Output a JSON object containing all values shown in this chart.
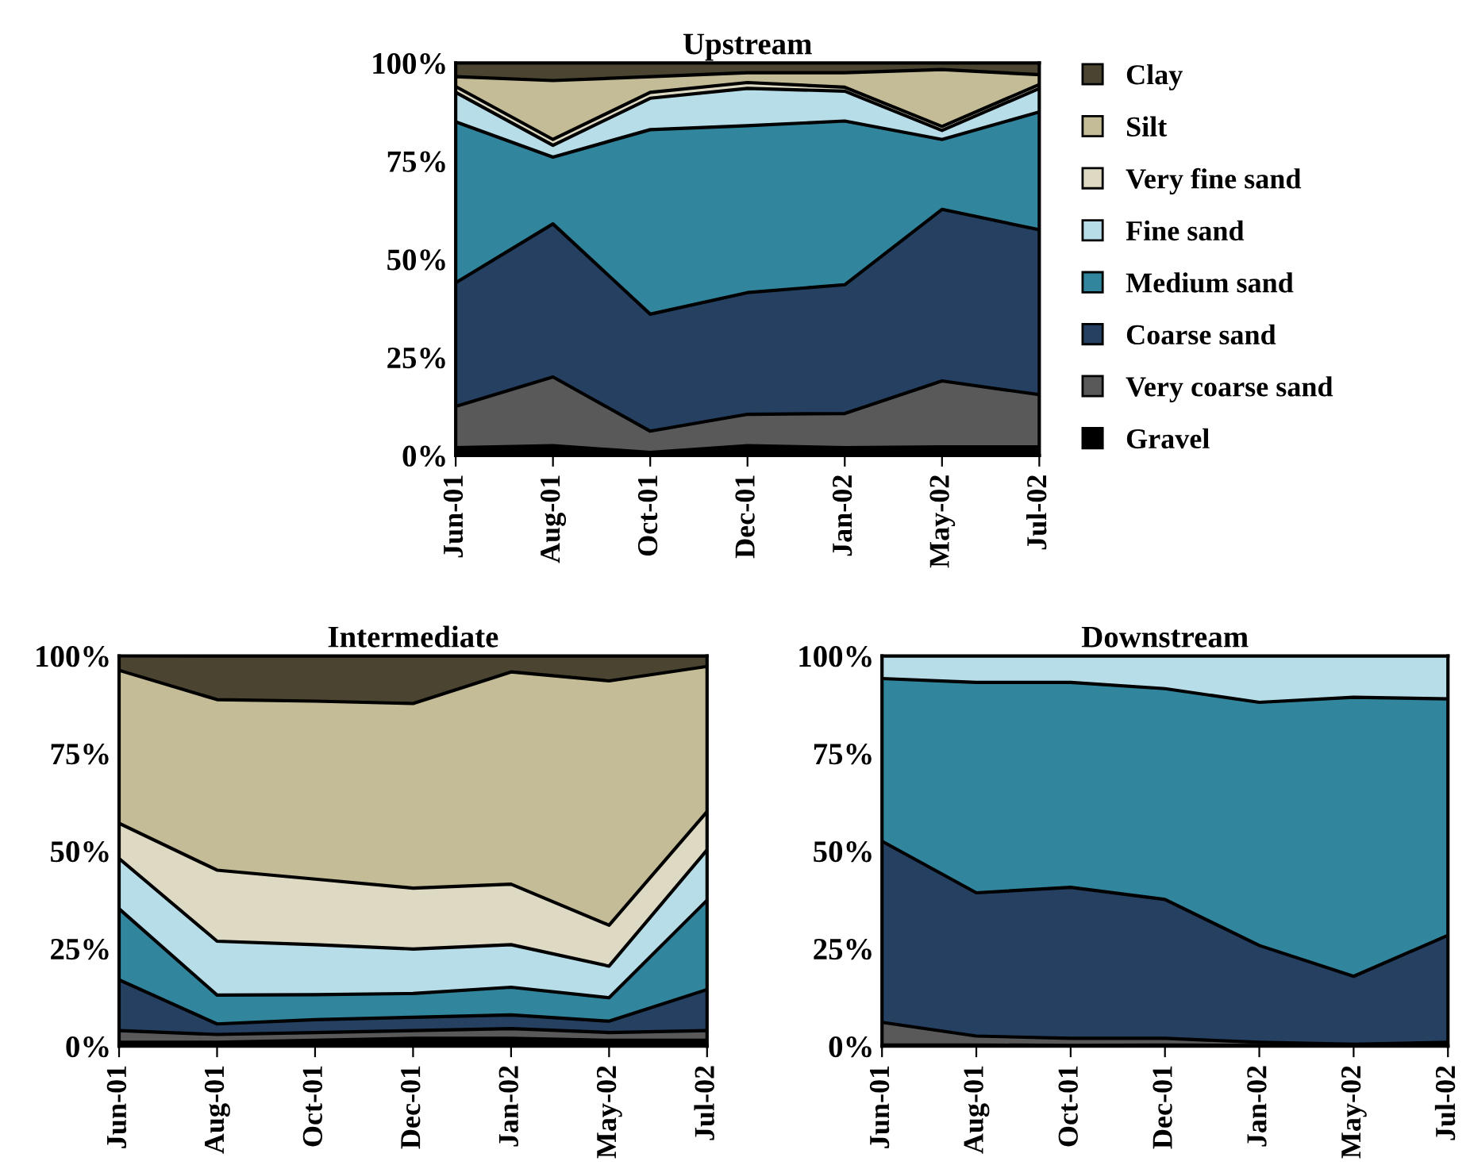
{
  "chart_data": [
    {
      "type": "area",
      "title": "Upstream",
      "stacked": true,
      "legend": "right",
      "grid": false,
      "categories": [
        "Jun-01",
        "Aug-01",
        "Oct-01",
        "Dec-01",
        "Jan-02",
        "May-02",
        "Jul-02"
      ],
      "ylim": [
        0,
        100
      ],
      "yticks": [
        {
          "value": 0,
          "label": "0%"
        },
        {
          "value": 25,
          "label": "25%"
        },
        {
          "value": 50,
          "label": "50%"
        },
        {
          "value": 75,
          "label": "75%"
        },
        {
          "value": 100,
          "label": "100%"
        }
      ],
      "series": [
        {
          "name": "Gravel",
          "color": "#000000",
          "values": [
            2,
            2.5,
            0.8,
            2.5,
            2,
            2.2,
            2.2
          ]
        },
        {
          "name": "Very coarse sand",
          "color": "#595959",
          "values": [
            10.5,
            17.5,
            5.4,
            8,
            8.7,
            16.8,
            13.3
          ]
        },
        {
          "name": "Coarse sand",
          "color": "#254061",
          "values": [
            31.5,
            39,
            29.8,
            31,
            32.8,
            43.7,
            42
          ]
        },
        {
          "name": "Medium sand",
          "color": "#31859c",
          "values": [
            41,
            17,
            47,
            42.5,
            41.7,
            17.8,
            30
          ]
        },
        {
          "name": "Fine sand",
          "color": "#b7dde8",
          "values": [
            7.5,
            3,
            8,
            9.5,
            7.6,
            2.3,
            6
          ]
        },
        {
          "name": "Very fine sand",
          "color": "#ddd9c3",
          "values": [
            1.5,
            1.5,
            1.5,
            1.5,
            1,
            1,
            1
          ]
        },
        {
          "name": "Silt",
          "color": "#c4bc96",
          "values": [
            2.5,
            15,
            4,
            2.5,
            3.7,
            14.5,
            2.5
          ]
        },
        {
          "name": "Clay",
          "color": "#4a4430",
          "values": [
            3.5,
            4.5,
            3.5,
            2.5,
            2.5,
            1.7,
            3
          ]
        }
      ]
    },
    {
      "type": "area",
      "title": "Intermediate",
      "stacked": true,
      "grid": false,
      "categories": [
        "Jun-01",
        "Aug-01",
        "Oct-01",
        "Dec-01",
        "Jan-02",
        "May-02",
        "Jul-02"
      ],
      "ylim": [
        0,
        100
      ],
      "yticks": [
        {
          "value": 0,
          "label": "0%"
        },
        {
          "value": 25,
          "label": "25%"
        },
        {
          "value": 50,
          "label": "50%"
        },
        {
          "value": 75,
          "label": "75%"
        },
        {
          "value": 100,
          "label": "100%"
        }
      ],
      "series": [
        {
          "color": "#000000",
          "values": [
            1,
            1,
            1.5,
            2,
            2,
            1.5,
            1.5
          ]
        },
        {
          "color": "#595959",
          "values": [
            3,
            2,
            2,
            2,
            2.5,
            2,
            2.5
          ]
        },
        {
          "color": "#254061",
          "values": [
            13,
            2.7,
            3.3,
            3.4,
            3.5,
            2.9,
            10.5
          ]
        },
        {
          "color": "#31859c",
          "values": [
            18.2,
            7.4,
            6.4,
            6.1,
            7.1,
            6,
            22.9
          ]
        },
        {
          "color": "#b7dde8",
          "values": [
            12.9,
            13.8,
            12.8,
            11.4,
            10.9,
            8.1,
            12.9
          ]
        },
        {
          "color": "#ddd9c3",
          "values": [
            9,
            18.2,
            16.8,
            15.6,
            15.5,
            10.5,
            9.8
          ]
        },
        {
          "color": "#c4bc96",
          "values": [
            39.2,
            43.7,
            45.6,
            47.3,
            54.4,
            62.6,
            37.2
          ]
        },
        {
          "color": "#4a4430",
          "values": [
            3.8,
            11.2,
            11.6,
            12.2,
            4.1,
            6.4,
            2.7
          ]
        }
      ]
    },
    {
      "type": "area",
      "title": "Downstream",
      "stacked": true,
      "grid": false,
      "categories": [
        "Jun-01",
        "Aug-01",
        "Oct-01",
        "Dec-01",
        "Jan-02",
        "May-02",
        "Jul-02"
      ],
      "ylim": [
        0,
        100
      ],
      "yticks": [
        {
          "value": 0,
          "label": "0%"
        },
        {
          "value": 25,
          "label": "25%"
        },
        {
          "value": 50,
          "label": "50%"
        },
        {
          "value": 75,
          "label": "75%"
        },
        {
          "value": 100,
          "label": "100%"
        }
      ],
      "series": [
        {
          "color": "#000000",
          "values": [
            0.3,
            0.3,
            0.2,
            0.3,
            0.2,
            0.2,
            0.3
          ]
        },
        {
          "color": "#595959",
          "values": [
            5.8,
            2.3,
            1.8,
            1.7,
            0.8,
            0.3,
            0.7
          ]
        },
        {
          "color": "#254061",
          "values": [
            46.4,
            36.7,
            38.7,
            35.6,
            24.8,
            17.4,
            27.4
          ]
        },
        {
          "color": "#31859c",
          "values": [
            41.7,
            53.9,
            52.5,
            54,
            62.3,
            71.5,
            60.6
          ]
        },
        {
          "color": "#b7dde8",
          "values": [
            5.8,
            6.8,
            6.8,
            8.4,
            11.9,
            10.6,
            11
          ]
        }
      ]
    }
  ]
}
